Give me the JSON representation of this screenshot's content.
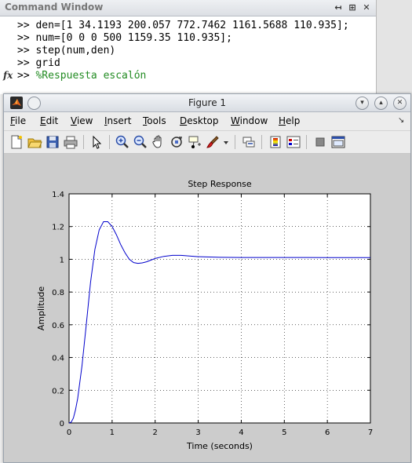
{
  "command_window": {
    "title": "Command Window",
    "prompt": ">>",
    "lines": [
      {
        "text": "den=[1 34.1193 200.057 772.7462 1161.5688 110.935];",
        "kind": "code"
      },
      {
        "text": "num=[0 0 0 500 1159.35 110.935];",
        "kind": "code"
      },
      {
        "text": "step(num,den)",
        "kind": "code"
      },
      {
        "text": "grid",
        "kind": "code"
      },
      {
        "text": "%Respuesta escalón",
        "kind": "comment"
      }
    ],
    "fx_label": "fx",
    "controls": [
      "↤",
      "⊞",
      "✕"
    ]
  },
  "figure": {
    "title": "Figure 1",
    "menu": [
      {
        "label": "File",
        "u": "F",
        "rest": "ile"
      },
      {
        "label": "Edit",
        "u": "E",
        "rest": "dit"
      },
      {
        "label": "View",
        "u": "V",
        "rest": "iew"
      },
      {
        "label": "Insert",
        "u": "I",
        "rest": "nsert"
      },
      {
        "label": "Tools",
        "u": "T",
        "rest": "ools"
      },
      {
        "label": "Desktop",
        "u": "D",
        "rest": "esktop"
      },
      {
        "label": "Window",
        "u": "W",
        "rest": "indow"
      },
      {
        "label": "Help",
        "u": "H",
        "rest": "elp"
      }
    ],
    "menu_dock": "↘",
    "toolbar": [
      "new-figure-icon",
      "open-file-icon",
      "save-icon",
      "print-icon",
      "select-arrow-icon",
      "zoom-in-icon",
      "zoom-out-icon",
      "pan-hand-icon",
      "rotate-3d-icon",
      "data-cursor-icon",
      "brush-icon",
      "brush-dropdown-icon",
      "link-plot-icon",
      "colorbar-icon",
      "legend-icon",
      "hide-plot-tools-icon",
      "show-plot-tools-icon"
    ]
  },
  "chart_data": {
    "type": "line",
    "title": "Step Response",
    "xlabel": "Time (seconds)",
    "ylabel": "Amplitude",
    "xlim": [
      0,
      7
    ],
    "ylim": [
      0,
      1.4
    ],
    "xticks": [
      0,
      1,
      2,
      3,
      4,
      5,
      6,
      7
    ],
    "yticks": [
      0,
      0.2,
      0.4,
      0.6,
      0.8,
      1,
      1.2,
      1.4
    ],
    "grid": true,
    "line_color": "#0000cc",
    "x": [
      0,
      0.05,
      0.1,
      0.15,
      0.2,
      0.3,
      0.4,
      0.5,
      0.6,
      0.7,
      0.8,
      0.9,
      1.0,
      1.1,
      1.2,
      1.3,
      1.4,
      1.5,
      1.6,
      1.7,
      1.8,
      1.9,
      2.0,
      2.2,
      2.4,
      2.6,
      2.8,
      3.0,
      3.5,
      4.0,
      4.5,
      5.0,
      5.5,
      6.0,
      6.5,
      7.0
    ],
    "y": [
      0,
      0.005,
      0.03,
      0.08,
      0.15,
      0.35,
      0.6,
      0.86,
      1.06,
      1.18,
      1.23,
      1.23,
      1.2,
      1.15,
      1.09,
      1.04,
      1.0,
      0.98,
      0.975,
      0.978,
      0.985,
      0.995,
      1.005,
      1.018,
      1.024,
      1.024,
      1.02,
      1.016,
      1.012,
      1.011,
      1.011,
      1.011,
      1.011,
      1.01,
      1.01,
      1.01
    ]
  }
}
